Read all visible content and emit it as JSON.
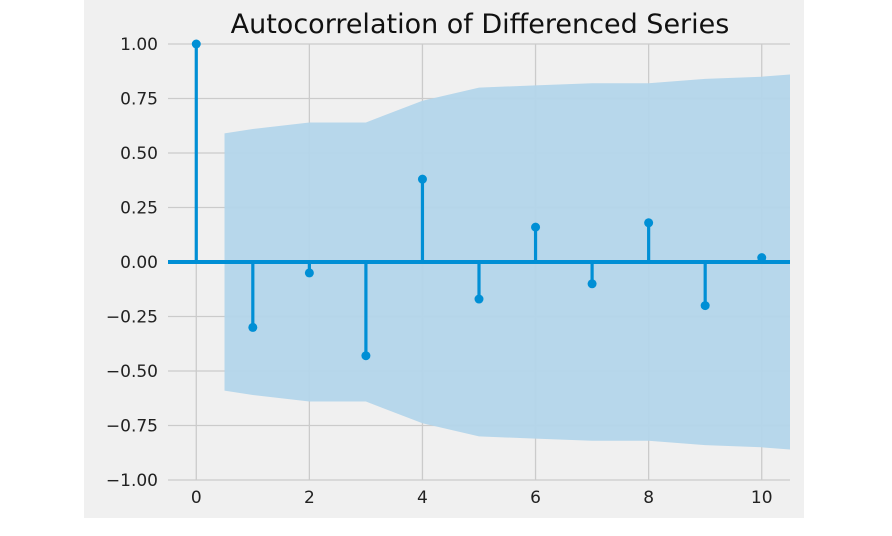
{
  "chart_data": {
    "type": "stem",
    "title": "Autocorrelation of Differenced Series",
    "xlabel": "",
    "ylabel": "",
    "xlim": [
      -0.5,
      10.5
    ],
    "ylim": [
      -1.0,
      1.0
    ],
    "xticks": [
      0,
      2,
      4,
      6,
      8,
      10
    ],
    "yticks": [
      1.0,
      0.75,
      0.5,
      0.25,
      0.0,
      -0.25,
      -0.5,
      -0.75,
      -1.0
    ],
    "ytick_labels": [
      "1.00",
      "0.75",
      "0.50",
      "0.25",
      "0.00",
      "−0.25",
      "−0.50",
      "−0.75",
      "−1.00"
    ],
    "xtick_labels": [
      "0",
      "2",
      "4",
      "6",
      "8",
      "10"
    ],
    "grid": true,
    "lags": [
      0,
      1,
      2,
      3,
      4,
      5,
      6,
      7,
      8,
      9,
      10
    ],
    "values": [
      1.0,
      -0.3,
      -0.05,
      -0.43,
      0.38,
      -0.17,
      0.16,
      -0.1,
      0.18,
      -0.2,
      0.02
    ],
    "confidence_interval": {
      "lags": [
        0.5,
        1,
        2,
        3,
        4,
        5,
        6,
        7,
        8,
        9,
        10,
        10.5
      ],
      "upper": [
        0.59,
        0.61,
        0.64,
        0.64,
        0.74,
        0.8,
        0.81,
        0.82,
        0.82,
        0.84,
        0.85,
        0.86
      ],
      "lower": [
        -0.59,
        -0.61,
        -0.64,
        -0.64,
        -0.74,
        -0.8,
        -0.81,
        -0.82,
        -0.82,
        -0.84,
        -0.85,
        -0.86
      ]
    },
    "colors": {
      "stem": "#008fd5",
      "band": "#b3d5ea",
      "grid": "#cbcbcb",
      "background": "#f0f0f0"
    }
  }
}
